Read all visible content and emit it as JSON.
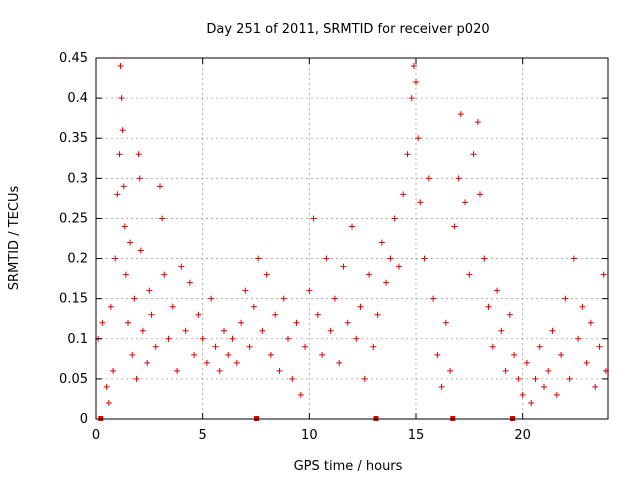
{
  "chart_data": {
    "type": "scatter",
    "title": "Day 251 of 2011, SRMTID for receiver p020",
    "xlabel": "GPS time / hours",
    "ylabel": "SRMTID / TECUs",
    "xlim": [
      0,
      24
    ],
    "ylim": [
      0,
      0.45
    ],
    "xticks": [
      0,
      5,
      10,
      15,
      20
    ],
    "yticks": [
      0,
      0.05,
      0.1,
      0.15,
      0.2,
      0.25,
      0.3,
      0.35,
      0.4,
      0.45
    ],
    "grid": true,
    "marker": "+",
    "color": "#e00000",
    "series": [
      {
        "name": "SRMTID",
        "points": [
          [
            0.1,
            0.1
          ],
          [
            0.3,
            0.12
          ],
          [
            0.5,
            0.04
          ],
          [
            0.6,
            0.02
          ],
          [
            0.7,
            0.14
          ],
          [
            0.8,
            0.06
          ],
          [
            0.9,
            0.2
          ],
          [
            1.0,
            0.28
          ],
          [
            1.1,
            0.33
          ],
          [
            1.15,
            0.44
          ],
          [
            1.2,
            0.4
          ],
          [
            1.25,
            0.36
          ],
          [
            1.3,
            0.29
          ],
          [
            1.35,
            0.24
          ],
          [
            1.4,
            0.18
          ],
          [
            1.5,
            0.12
          ],
          [
            1.6,
            0.22
          ],
          [
            1.7,
            0.08
          ],
          [
            1.8,
            0.15
          ],
          [
            1.9,
            0.05
          ],
          [
            2.0,
            0.33
          ],
          [
            2.05,
            0.3
          ],
          [
            2.1,
            0.21
          ],
          [
            2.2,
            0.11
          ],
          [
            2.4,
            0.07
          ],
          [
            2.5,
            0.16
          ],
          [
            2.6,
            0.13
          ],
          [
            2.8,
            0.09
          ],
          [
            3.0,
            0.29
          ],
          [
            3.1,
            0.25
          ],
          [
            3.2,
            0.18
          ],
          [
            3.4,
            0.1
          ],
          [
            3.6,
            0.14
          ],
          [
            3.8,
            0.06
          ],
          [
            4.0,
            0.19
          ],
          [
            4.2,
            0.11
          ],
          [
            4.4,
            0.17
          ],
          [
            4.6,
            0.08
          ],
          [
            4.8,
            0.13
          ],
          [
            5.0,
            0.1
          ],
          [
            5.2,
            0.07
          ],
          [
            5.4,
            0.15
          ],
          [
            5.6,
            0.09
          ],
          [
            5.8,
            0.06
          ],
          [
            6.0,
            0.11
          ],
          [
            6.2,
            0.08
          ],
          [
            6.4,
            0.1
          ],
          [
            6.6,
            0.07
          ],
          [
            6.8,
            0.12
          ],
          [
            7.0,
            0.16
          ],
          [
            7.2,
            0.09
          ],
          [
            7.4,
            0.14
          ],
          [
            7.6,
            0.2
          ],
          [
            7.8,
            0.11
          ],
          [
            8.0,
            0.18
          ],
          [
            8.2,
            0.08
          ],
          [
            8.4,
            0.13
          ],
          [
            8.6,
            0.06
          ],
          [
            8.8,
            0.15
          ],
          [
            9.0,
            0.1
          ],
          [
            9.2,
            0.05
          ],
          [
            9.4,
            0.12
          ],
          [
            9.6,
            0.03
          ],
          [
            9.8,
            0.09
          ],
          [
            10.0,
            0.16
          ],
          [
            10.2,
            0.25
          ],
          [
            10.4,
            0.13
          ],
          [
            10.6,
            0.08
          ],
          [
            10.8,
            0.2
          ],
          [
            11.0,
            0.11
          ],
          [
            11.2,
            0.15
          ],
          [
            11.4,
            0.07
          ],
          [
            11.6,
            0.19
          ],
          [
            11.8,
            0.12
          ],
          [
            12.0,
            0.24
          ],
          [
            12.2,
            0.1
          ],
          [
            12.4,
            0.14
          ],
          [
            12.6,
            0.05
          ],
          [
            12.8,
            0.18
          ],
          [
            13.0,
            0.09
          ],
          [
            13.2,
            0.13
          ],
          [
            13.4,
            0.22
          ],
          [
            13.6,
            0.17
          ],
          [
            13.8,
            0.2
          ],
          [
            14.0,
            0.25
          ],
          [
            14.2,
            0.19
          ],
          [
            14.4,
            0.28
          ],
          [
            14.6,
            0.33
          ],
          [
            14.8,
            0.4
          ],
          [
            14.9,
            0.44
          ],
          [
            15.0,
            0.42
          ],
          [
            15.1,
            0.35
          ],
          [
            15.2,
            0.27
          ],
          [
            15.4,
            0.2
          ],
          [
            15.6,
            0.3
          ],
          [
            15.8,
            0.15
          ],
          [
            16.0,
            0.08
          ],
          [
            16.2,
            0.04
          ],
          [
            16.4,
            0.12
          ],
          [
            16.6,
            0.06
          ],
          [
            16.8,
            0.24
          ],
          [
            17.0,
            0.3
          ],
          [
            17.1,
            0.38
          ],
          [
            17.3,
            0.27
          ],
          [
            17.5,
            0.18
          ],
          [
            17.7,
            0.33
          ],
          [
            17.9,
            0.37
          ],
          [
            18.0,
            0.28
          ],
          [
            18.2,
            0.2
          ],
          [
            18.4,
            0.14
          ],
          [
            18.6,
            0.09
          ],
          [
            18.8,
            0.16
          ],
          [
            19.0,
            0.11
          ],
          [
            19.2,
            0.06
          ],
          [
            19.4,
            0.13
          ],
          [
            19.6,
            0.08
          ],
          [
            19.8,
            0.05
          ],
          [
            20.0,
            0.03
          ],
          [
            20.2,
            0.07
          ],
          [
            20.4,
            0.02
          ],
          [
            20.6,
            0.05
          ],
          [
            20.8,
            0.09
          ],
          [
            21.0,
            0.04
          ],
          [
            21.2,
            0.06
          ],
          [
            21.4,
            0.11
          ],
          [
            21.6,
            0.03
          ],
          [
            21.8,
            0.08
          ],
          [
            22.0,
            0.15
          ],
          [
            22.2,
            0.05
          ],
          [
            22.4,
            0.2
          ],
          [
            22.6,
            0.1
          ],
          [
            22.8,
            0.14
          ],
          [
            23.0,
            0.07
          ],
          [
            23.2,
            0.12
          ],
          [
            23.4,
            0.04
          ],
          [
            23.6,
            0.09
          ],
          [
            23.8,
            0.18
          ],
          [
            23.9,
            0.06
          ]
        ]
      }
    ],
    "baseline_marks_x": [
      0.2,
      7.5,
      13.1,
      16.7,
      19.5
    ]
  }
}
